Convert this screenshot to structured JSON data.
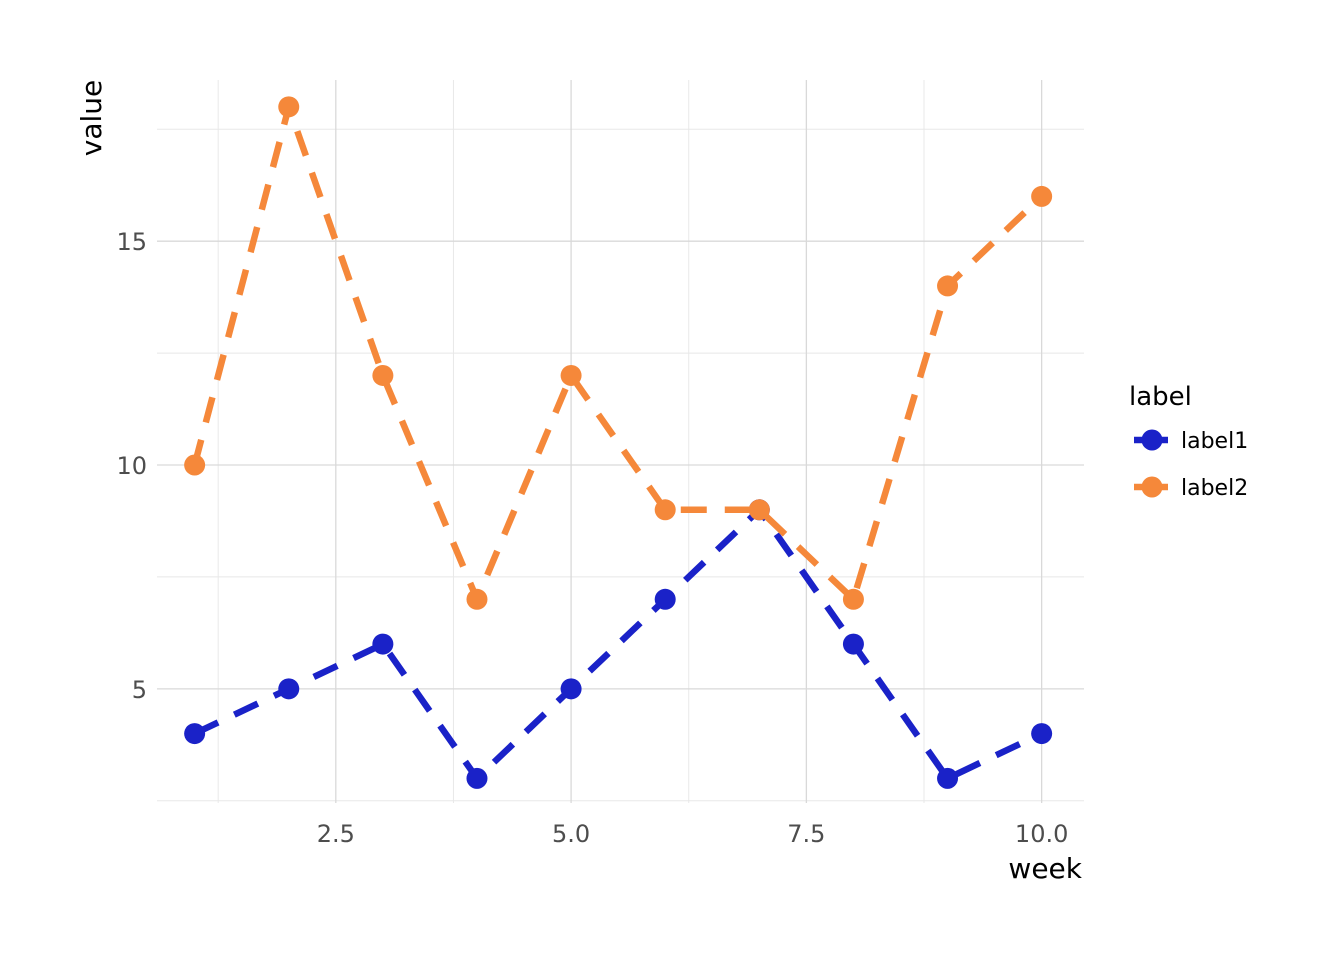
{
  "chart_data": {
    "type": "line",
    "xlabel": "week",
    "ylabel": "value",
    "xlim": [
      0.6,
      10.45
    ],
    "ylim": [
      2.45,
      18.6
    ],
    "x_ticks": [
      2.5,
      5.0,
      7.5,
      10.0
    ],
    "x_tick_labels": [
      "2.5",
      "5.0",
      "7.5",
      "10.0"
    ],
    "y_ticks": [
      5,
      10,
      15
    ],
    "y_tick_labels": [
      "5",
      "10",
      "15"
    ],
    "x_minor_ticks": [
      1.25,
      3.75,
      6.25,
      8.75
    ],
    "y_minor_ticks": [
      2.5,
      7.5,
      12.5,
      17.5
    ],
    "grid": true,
    "line_style": "dashed",
    "legend": {
      "title": "label",
      "position": "right"
    },
    "x": [
      1,
      2,
      3,
      4,
      5,
      6,
      7,
      8,
      9,
      10
    ],
    "series": [
      {
        "name": "label1",
        "color": "#1a22c8",
        "values": [
          4,
          5,
          6,
          3,
          5,
          7,
          9,
          6,
          3,
          4
        ]
      },
      {
        "name": "label2",
        "color": "#f5883a",
        "values": [
          10,
          18,
          12,
          7,
          12,
          9,
          9,
          7,
          14,
          16
        ]
      }
    ]
  }
}
